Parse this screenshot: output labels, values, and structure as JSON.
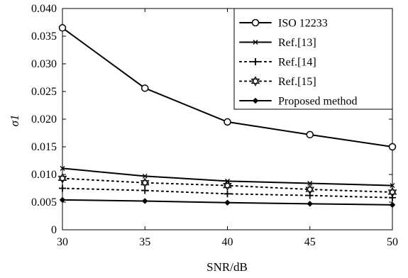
{
  "chart_data": {
    "type": "line",
    "x": [
      30,
      35,
      40,
      45,
      50
    ],
    "xlim": [
      30,
      50
    ],
    "ylim": [
      0,
      0.04
    ],
    "xticks": [
      "30",
      "35",
      "40",
      "45",
      "50"
    ],
    "yticks": [
      "0",
      "0.005",
      "0.010",
      "0.015",
      "0.020",
      "0.025",
      "0.030",
      "0.035",
      "0.040"
    ],
    "xlabel": "SNR/dB",
    "ylabel": "σ1",
    "title": "",
    "grid": false,
    "legend_position": "top-right",
    "series": [
      {
        "name": "ISO 12233",
        "values": [
          0.0365,
          0.0256,
          0.0195,
          0.0172,
          0.015
        ],
        "marker": "circle",
        "line": "solid"
      },
      {
        "name": "Ref.[13]",
        "values": [
          0.0111,
          0.0097,
          0.0088,
          0.0084,
          0.008
        ],
        "marker": "x",
        "line": "solid"
      },
      {
        "name": "Ref.[14]",
        "values": [
          0.0075,
          0.0071,
          0.0065,
          0.0062,
          0.0058
        ],
        "marker": "plus",
        "line": "dotted"
      },
      {
        "name": "Ref.[15]",
        "values": [
          0.0093,
          0.0085,
          0.008,
          0.0073,
          0.0068
        ],
        "marker": "hexagram",
        "line": "dotted"
      },
      {
        "name": "Proposed method",
        "values": [
          0.0054,
          0.0052,
          0.0049,
          0.0047,
          0.0045
        ],
        "marker": "diamond",
        "line": "solid"
      }
    ]
  }
}
